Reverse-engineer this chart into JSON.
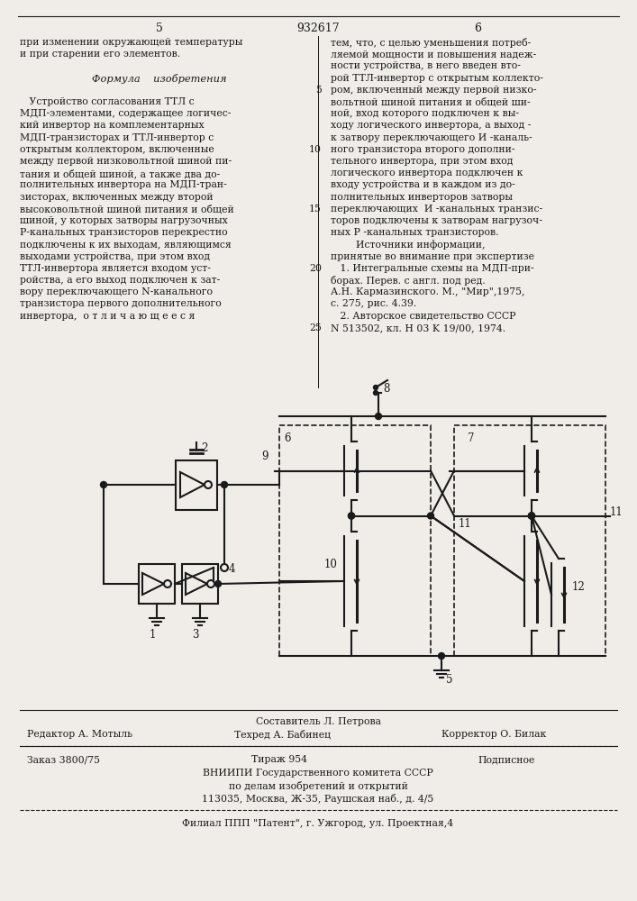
{
  "page_width": 7.07,
  "page_height": 10.0,
  "bg_color": "#f0ede8",
  "text_color": "#1a1a1a",
  "line_color": "#1a1a1a",
  "header_num_left": "5",
  "header_num_center": "932617",
  "header_num_right": "6",
  "col1_lines": [
    "при изменении окружающей температуры",
    "и при старении его элементов.",
    "",
    "     Формула    изобретения",
    "",
    "   Устройство согласования ТТЛ с",
    "МДП-элементами, содержащее логичес-",
    "кий инвертор на комплементарных",
    "МДП-транзисторах и ТТЛ-инвертор с",
    "открытым коллектором, включенные",
    "между первой низковольтной шиной пи-",
    "тания и общей шиной, а также два до-",
    "полнительных инвертора на МДП-тран-",
    "зисторах, включенных между второй",
    "высоковольтной шиной питания и общей",
    "шиной, у которых затворы нагрузочных",
    "Р-канальных транзисторов перекрестно",
    "подключены к их выходам, являющимся",
    "выходами устройства, при этом вход",
    "ТТЛ-инвертора является входом уст-",
    "ройства, а его выход подключен к зат-",
    "вору переключающего N-канального",
    "транзистора первого дополнительного",
    "инвертора,  о т л и ч а ю щ е е с я"
  ],
  "col2_lines": [
    "тем, что, с целью уменьшения потреб-",
    "ляемой мощности и повышения надеж-",
    "ности устройства, в него введен вто-",
    "рой ТТЛ-инвертор с открытым коллекто-",
    "ром, включенный между первой низко-",
    "вольтной шиной питания и общей ши-",
    "ной, вход которого подключен к вы-",
    "ходу логического инвертора, а выход -",
    "к затвору переключающего И -каналь-",
    "ного транзистора второго дополни-",
    "тельного инвертора, при этом вход",
    "логического инвертора подключен к",
    "входу устройства и в каждом из до-",
    "полнительных инверторов затворы",
    "переключающих  И -канальных транзис-",
    "торов подключены к затворам нагрузоч-",
    "ных Р -канальных транзисторов.",
    "        Источники информации,",
    "принятые во внимание при экспертизе",
    "   1. Интегральные схемы на МДП-при-",
    "борах. Перев. с англ. под ред.",
    "А.Н. Кармазинского. М., \"Мир\",1975,",
    "с. 275, рис. 4.39.",
    "   2. Авторское свидетельство СССР",
    "N 513502, кл. H 03 K 19/00, 1974."
  ],
  "line_numbers": {
    "4": "5",
    "9": "10",
    "14": "15",
    "19": "20",
    "24": "25"
  },
  "footer_composer": "Составитель Л. Петрова",
  "footer_editor": "Редактор А. Мотыль",
  "footer_techred": "Техред А. Бабинец",
  "footer_corrector": "Корректор О. Билак",
  "footer_order": "Заказ 3800/75",
  "footer_circ": "Тираж 954",
  "footer_signed": "Подписное",
  "footer_org1": "ВНИИПИ Государственного комитета СССР",
  "footer_org2": "по делам изобретений и открытий",
  "footer_addr": "113035, Москва, Ж-35, Раушская наб., д. 4/5",
  "footer_branch": "Филиал ППП \"Патент\", г. Ужгород, ул. Проектная,4"
}
